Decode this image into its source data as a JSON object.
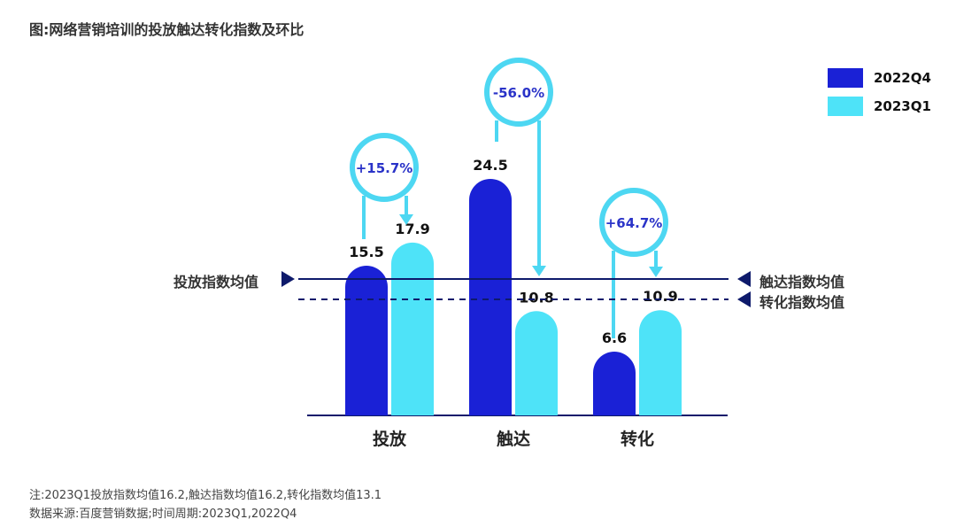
{
  "title": "图:网络营销培训的投放触达转化指数及环比",
  "colors": {
    "q4": "#1a21d6",
    "q1": "#4ee3f8",
    "ring": "#4dd7f2",
    "pct": "#2a33c8",
    "avg": "#0e1a6b"
  },
  "notes": {
    "line1": "注:2023Q1投放指数均值16.2,触达指数均值16.2,转化指数均值13.1",
    "line2": "数据来源:百度营销数据;时间周期:2023Q1,2022Q4"
  },
  "chart_data": {
    "type": "bar",
    "categories": [
      "投放",
      "触达",
      "转化"
    ],
    "series": [
      {
        "name": "2022Q4",
        "values": [
          15.5,
          24.5,
          6.6
        ]
      },
      {
        "name": "2023Q1",
        "values": [
          17.9,
          10.8,
          10.9
        ]
      }
    ],
    "changes": [
      "+15.7%",
      "-56.0%",
      "+64.7%"
    ],
    "averages": [
      {
        "label": "投放指数均值",
        "style": "solid"
      },
      {
        "label": "触达指数均值",
        "style": "solid"
      },
      {
        "label": "转化指数均值",
        "style": "dashed"
      }
    ],
    "legend_position": "top-right"
  }
}
